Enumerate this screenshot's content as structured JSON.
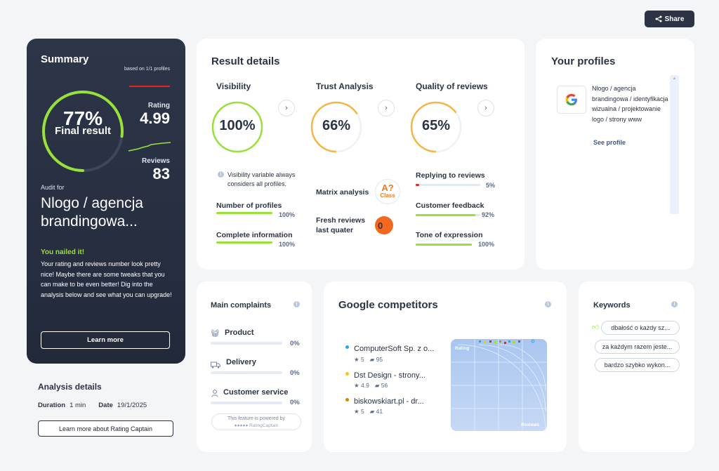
{
  "share_label": "Share",
  "summary": {
    "title": "Summary",
    "based_on": "based on 1/1 profiles",
    "percent": "77%",
    "final_result": "Final result",
    "final_fraction": 0.77,
    "rating_label": "Rating",
    "rating_value": "4.99",
    "reviews_label": "Reviews",
    "reviews_value": "83",
    "audit_for_label": "Audit for",
    "audit_name": "Nlogo / agencja brandingowa...",
    "nailed_title": "You nailed it!",
    "nailed_text": "Your rating and reviews number look pretty nice! Maybe there are some tweaks that you can make to be even better! Dig into the analysis below and see what you can upgrade!",
    "learn_more": "Learn more",
    "colors": {
      "accent": "#9ae03a",
      "rating_line": "#e02626"
    }
  },
  "analysis_details": {
    "title": "Analysis details",
    "duration_label": "Duration",
    "duration_value": "1 min",
    "date_label": "Date",
    "date_value": "19/1/2025",
    "learn_more_button": "Learn more about Rating Captain"
  },
  "result_details": {
    "title": "Result details",
    "visibility": {
      "title": "Visibility",
      "value": "100%",
      "fraction": 1.0,
      "note": "Visibility variable always considers all profiles.",
      "bars": [
        {
          "label": "Number of profiles",
          "percent": "100%",
          "fraction": 1.0
        },
        {
          "label": "Complete information",
          "percent": "100%",
          "fraction": 1.0
        }
      ]
    },
    "trust": {
      "title": "Trust Analysis",
      "value": "66%",
      "fraction": 0.66,
      "matrix_label": "Matrix analysis",
      "matrix_grade": "A?",
      "matrix_class": "Class",
      "fresh_label": "Fresh reviews last quater",
      "fresh_value": "0"
    },
    "quality": {
      "title": "Quality of reviews",
      "value": "65%",
      "fraction": 0.65,
      "bars": [
        {
          "label": "Replying to reviews",
          "percent": "5%",
          "fraction": 0.05,
          "color": "#e02626"
        },
        {
          "label": "Customer feedback",
          "percent": "92%",
          "fraction": 0.92,
          "color": "#9ae03a"
        },
        {
          "label": "Tone of expression",
          "percent": "100%",
          "fraction": 1.0,
          "color": "#9ae03a"
        }
      ]
    }
  },
  "profiles": {
    "title": "Your profiles",
    "items": [
      {
        "icon": "google-icon",
        "name": "Nlogo / agencja brandingowa / identyfikacja wizualna / projektowanie logo / strony www",
        "link": "See profile"
      }
    ]
  },
  "complaints": {
    "title": "Main complaints",
    "items": [
      {
        "label": "Product",
        "percent": "0%",
        "icon": "basket-icon"
      },
      {
        "label": "Delivery",
        "percent": "0%",
        "icon": "truck-icon"
      },
      {
        "label": "Customer service",
        "percent": "0%",
        "icon": "person-icon"
      }
    ],
    "powered_line1": "This feature is powered by",
    "powered_line2": "RatingCaptain"
  },
  "competitors": {
    "title": "Google competitors",
    "items": [
      {
        "name": "ComputerSoft Sp. z o...",
        "rating": "5",
        "reviews": "95",
        "color": "#2aa7e0"
      },
      {
        "name": "Dst Design - strony...",
        "rating": "4.9",
        "reviews": "56",
        "color": "#f5c518"
      },
      {
        "name": "biskowskiart.pl - dr...",
        "rating": "5",
        "reviews": "41",
        "color": "#d08a00"
      }
    ],
    "chart_y_label": "Rating",
    "chart_x_label": "Reviews"
  },
  "keywords": {
    "title": "Keywords",
    "items": [
      "dbałość o każdy sz...",
      "za każdym razem jeste...",
      "bardzo szybko wykon..."
    ]
  }
}
